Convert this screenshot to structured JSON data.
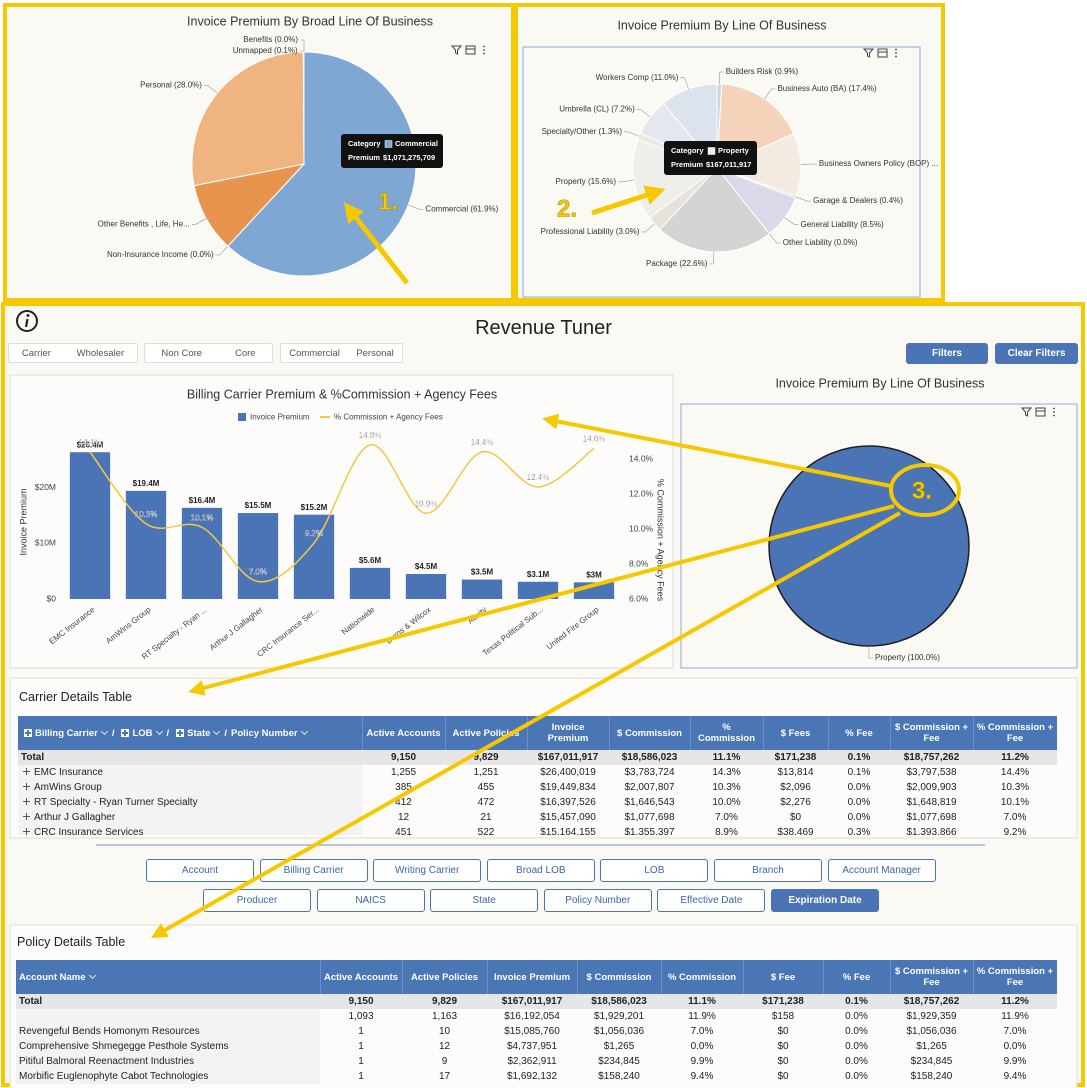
{
  "chart_data": [
    {
      "type": "pie",
      "title": "Invoice Premium By Broad Line Of Business",
      "categories": [
        "Commercial (61.9%)",
        "Non-Insurance Income (0.0%)",
        "Other Benefits , Life, He...",
        "Personal (28.0%)",
        "Unmapped (0.1%)",
        "Benefits (0.0%)"
      ],
      "values": [
        61.9,
        0.0,
        10.0,
        28.0,
        0.1,
        0.0
      ],
      "colors": [
        "#7ea7d3",
        "#b7d1e6",
        "#e8944f",
        "#efb47f",
        "#f3d5a8",
        "#f8e3c6"
      ],
      "edge_color": "#ffffff"
    },
    {
      "type": "pie",
      "title": "Invoice Premium By Line Of Business",
      "categories": [
        "Builders Risk (0.9%)",
        "Business Auto (BA) (17.4%)",
        "Business Owners Policy (BOP) ...",
        "Garage & Dealers (0.4%)",
        "General Liability (8.5%)",
        "Other Liability (0.0%)",
        "Package (22.6%)",
        "Professional Liability (3.0%)",
        "Property (15.6%)",
        "Specialty/Other (1.3%)",
        "Umbrella (CL) (7.2%)",
        "Workers Comp (11.0%)"
      ],
      "values": [
        0.9,
        17.4,
        12.1,
        0.4,
        8.5,
        0.0,
        22.6,
        3.0,
        15.6,
        1.3,
        7.2,
        11.0
      ],
      "colors": [
        "#c7d7ea",
        "#f5d3ba",
        "#f3ebe2",
        "#cfe5c6",
        "#dcd8ea",
        "#e9e9e9",
        "#d4d4d4",
        "#e8e3da",
        "#efeeea",
        "#ebe8e2",
        "#e4e7ee",
        "#dbe3ec"
      ],
      "edge_color": "#ffffff"
    },
    {
      "type": "combo",
      "title": "Billing Carrier Premium & %Commission + Agency Fees",
      "y_label": "Invoice Premium",
      "y2_label": "% Commission + Agency Fees",
      "categories": [
        "EMC Insurance",
        "AmWins Group",
        "RT Specialty - Ryan ...",
        "Arthur J Gallagher",
        "CRC Insurance Ser...",
        "Nationwide",
        "Burns & Wilcox",
        "Acuity",
        "Texas Political Sub...",
        "United Fire Group"
      ],
      "series": [
        {
          "name": "Invoice Premium",
          "type": "bar",
          "color": "#4a74b5",
          "values": [
            26400019,
            19449834,
            16397526,
            15457090,
            15164155,
            5600000,
            4500000,
            3500000,
            3100000,
            3000000
          ],
          "value_labels": [
            "$26.4M",
            "$19.4M",
            "$16.4M",
            "$15.5M",
            "$15.2M",
            "$5.6M",
            "$4.5M",
            "$3.5M",
            "$3.1M",
            "$3M"
          ]
        },
        {
          "name": "% Commission + Agency Fees",
          "type": "line",
          "axis": "y2",
          "color": "#f2c744",
          "values": [
            14.4,
            10.3,
            10.1,
            7.0,
            9.2,
            14.8,
            10.9,
            14.4,
            12.4,
            14.6
          ],
          "value_labels": [
            "14.4%",
            "10.3%",
            "10.1%",
            "7.0%",
            "9.2%",
            "14.8%",
            "10.9%",
            "14.4%",
            "12.4%",
            "14.6%"
          ]
        }
      ],
      "ylim": [
        0,
        27700000
      ],
      "yticks": [
        {
          "value": 0,
          "label": "$0"
        },
        {
          "value": 10000000,
          "label": "$10M"
        },
        {
          "value": 20000000,
          "label": "$20M"
        }
      ],
      "y2lim": [
        6,
        14.8
      ],
      "y2ticks": [
        {
          "value": 6,
          "label": "6.0%"
        },
        {
          "value": 8,
          "label": "8.0%"
        },
        {
          "value": 10,
          "label": "10.0%"
        },
        {
          "value": 12,
          "label": "12.0%"
        },
        {
          "value": 14,
          "label": "14.0%"
        }
      ],
      "grid": false
    },
    {
      "type": "pie",
      "title": "Invoice Premium By Line Of Business",
      "categories": [
        "Property (100.0%)"
      ],
      "values": [
        100.0
      ],
      "colors": [
        "#4a74b5"
      ],
      "edge_color": "#1e1e1e"
    }
  ],
  "annotations": [
    "1.",
    "2.",
    "3."
  ],
  "tooltips": [
    {
      "label": "Category",
      "category": "Commercial",
      "measure": "Premium",
      "value": "$1,071,275,709"
    },
    {
      "label": "Category",
      "category": "Property",
      "measure": "Premium",
      "value": "$167,011,917"
    }
  ],
  "dashboard": {
    "title": "Revenue Tuner",
    "toggles": [
      [
        "Carrier",
        "Wholesaler"
      ],
      [
        "Non Core",
        "Core"
      ],
      [
        "Commercial",
        "Personal"
      ]
    ],
    "buttons": [
      "Filters",
      "Clear Filters"
    ],
    "group_by": [
      [
        {
          "label": "Account"
        },
        {
          "label": "Billing Carrier"
        },
        {
          "label": "Writing Carrier"
        },
        {
          "label": "Broad LOB"
        },
        {
          "label": "LOB"
        },
        {
          "label": "Branch"
        },
        {
          "label": "Account Manager"
        }
      ],
      [
        {
          "label": "Producer"
        },
        {
          "label": "NAICS"
        },
        {
          "label": "State"
        },
        {
          "label": "Policy Number"
        },
        {
          "label": "Effective Date"
        },
        {
          "label": "Expiration Date",
          "selected": true
        }
      ]
    ]
  },
  "carrier_table": {
    "title": "Carrier Details Table",
    "header_path": [
      "Billing Carrier",
      "LOB",
      "State",
      "Policy Number"
    ],
    "separator": "/",
    "columns": [
      "Active Accounts",
      "Active Policies",
      "Invoice Premium",
      "$ Commission",
      "% Commission",
      "$ Fees",
      "% Fee",
      "$ Commission + Fee",
      "% Commission + Fee"
    ],
    "rows": [
      [
        "Total",
        "9,150",
        "9,829",
        "$167,011,917",
        "$18,586,023",
        "11.1%",
        "$171,238",
        "0.1%",
        "$18,757,262",
        "11.2%"
      ],
      [
        "EMC Insurance",
        "1,255",
        "1,251",
        "$26,400,019",
        "$3,783,724",
        "14.3%",
        "$13,814",
        "0.1%",
        "$3,797,538",
        "14.4%"
      ],
      [
        "AmWins Group",
        "385",
        "455",
        "$19,449,834",
        "$2,007,807",
        "10.3%",
        "$2,096",
        "0.0%",
        "$2,009,903",
        "10.3%"
      ],
      [
        "RT Specialty - Ryan Turner Specialty",
        "412",
        "472",
        "$16,397,526",
        "$1,646,543",
        "10.0%",
        "$2,276",
        "0.0%",
        "$1,648,819",
        "10.1%"
      ],
      [
        "Arthur J Gallagher",
        "12",
        "21",
        "$15,457,090",
        "$1,077,698",
        "7.0%",
        "$0",
        "0.0%",
        "$1,077,698",
        "7.0%"
      ],
      [
        "CRC Insurance Services",
        "451",
        "522",
        "$15,164,155",
        "$1,355,397",
        "8.9%",
        "$38,469",
        "0.3%",
        "$1,393,866",
        "9.2%"
      ]
    ]
  },
  "policy_table": {
    "title": "Policy Details Table",
    "columns": [
      "Account Name",
      "Active Accounts",
      "Active Policies",
      "Invoice Premium",
      "$ Commission",
      "% Commission",
      "$ Fee",
      "% Fee",
      "$ Commission + Fee",
      "% Commission + Fee"
    ],
    "rows": [
      [
        "Total",
        "9,150",
        "9,829",
        "$167,011,917",
        "$18,586,023",
        "11.1%",
        "$171,238",
        "0.1%",
        "$18,757,262",
        "11.2%"
      ],
      [
        null,
        "1,093",
        "1,163",
        "$16,192,054",
        "$1,929,201",
        "11.9%",
        "$158",
        "0.0%",
        "$1,929,359",
        "11.9%"
      ],
      [
        "Revengeful Bends Homonym Resources",
        "1",
        "10",
        "$15,085,760",
        "$1,056,036",
        "7.0%",
        "$0",
        "0.0%",
        "$1,056,036",
        "7.0%"
      ],
      [
        "Comprehensive Shmegegge Pesthole Systems",
        "1",
        "12",
        "$4,737,951",
        "$1,265",
        "0.0%",
        "$0",
        "0.0%",
        "$1,265",
        "0.0%"
      ],
      [
        "Pitiful Balmoral Reenactment Industries",
        "1",
        "9",
        "$2,362,911",
        "$234,845",
        "9.9%",
        "$0",
        "0.0%",
        "$234,845",
        "9.9%"
      ],
      [
        "Morbific Euglenophyte Cabot Technologies",
        "1",
        "17",
        "$1,692,132",
        "$158,240",
        "9.4%",
        "$0",
        "0.0%",
        "$158,240",
        "9.4%"
      ]
    ]
  }
}
